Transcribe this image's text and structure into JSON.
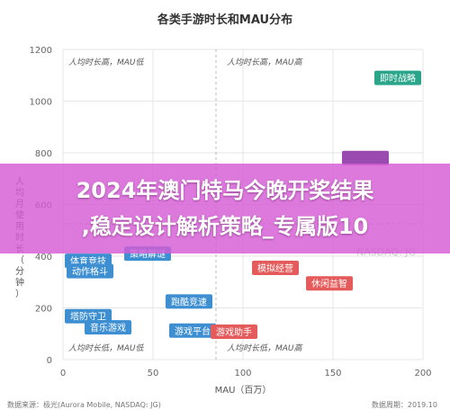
{
  "chart_data": {
    "type": "scatter",
    "title": "各类手游时长和MAU分布",
    "xlabel": "MAU（百万）",
    "ylabel": "人均月使用时长（分钟）",
    "xlim": [
      0,
      200
    ],
    "ylim": [
      0,
      1200
    ],
    "xticks": [
      0,
      50,
      100,
      150,
      200
    ],
    "yticks": [
      0,
      200,
      400,
      600,
      800,
      1000,
      1200
    ],
    "grid": true,
    "divider_x": 85,
    "divider_y": 525,
    "quadrant_labels": {
      "top_left": "人均时长高，MAU低",
      "top_right": "人均时长高，MAU高",
      "bottom_left": "人均时长低，MAU低",
      "bottom_right": "人均时长低，MAU高"
    },
    "points": [
      {
        "label": "即时战略",
        "x": 188,
        "y": 1090,
        "color": "#2aa58a"
      },
      {
        "label": "体育竞技",
        "x": 8,
        "y": 382,
        "color": "#3d8fd1"
      },
      {
        "label": "策略解谜",
        "x": 47,
        "y": 410,
        "color": "#3d8fd1"
      },
      {
        "label": "动作格斗",
        "x": 15,
        "y": 342,
        "color": "#3d8fd1"
      },
      {
        "label": "模拟经营",
        "x": 118,
        "y": 355,
        "color": "#e55a5a"
      },
      {
        "label": "休闲益智",
        "x": 148,
        "y": 295,
        "color": "#e55a5a"
      },
      {
        "label": "跑酷竞速",
        "x": 70,
        "y": 225,
        "color": "#3d8fd1"
      },
      {
        "label": "塔防守卫",
        "x": 12,
        "y": 168,
        "color": "#3d8fd1"
      },
      {
        "label": "音乐游戏",
        "x": 25,
        "y": 125,
        "color": "#3d8fd1"
      },
      {
        "label": "游戏平台",
        "x": 72,
        "y": 112,
        "color": "#3d8fd1"
      },
      {
        "label": "游戏助手",
        "x": 95,
        "y": 108,
        "color": "#e55a5a"
      },
      {
        "label": "",
        "x": 168,
        "y": 780,
        "color": "#9a4bb0"
      }
    ]
  },
  "overlay": {
    "line1": "2024年澳门特马今晚开奖结果",
    "line2": ",稳定设计解析策略_专属版10"
  },
  "watermark": "NASDAQ: JG",
  "footer": {
    "source": "数据来源：极光(Aurora Mobile, NASDAQ: JG)",
    "date": "数据周期：2019.10"
  }
}
